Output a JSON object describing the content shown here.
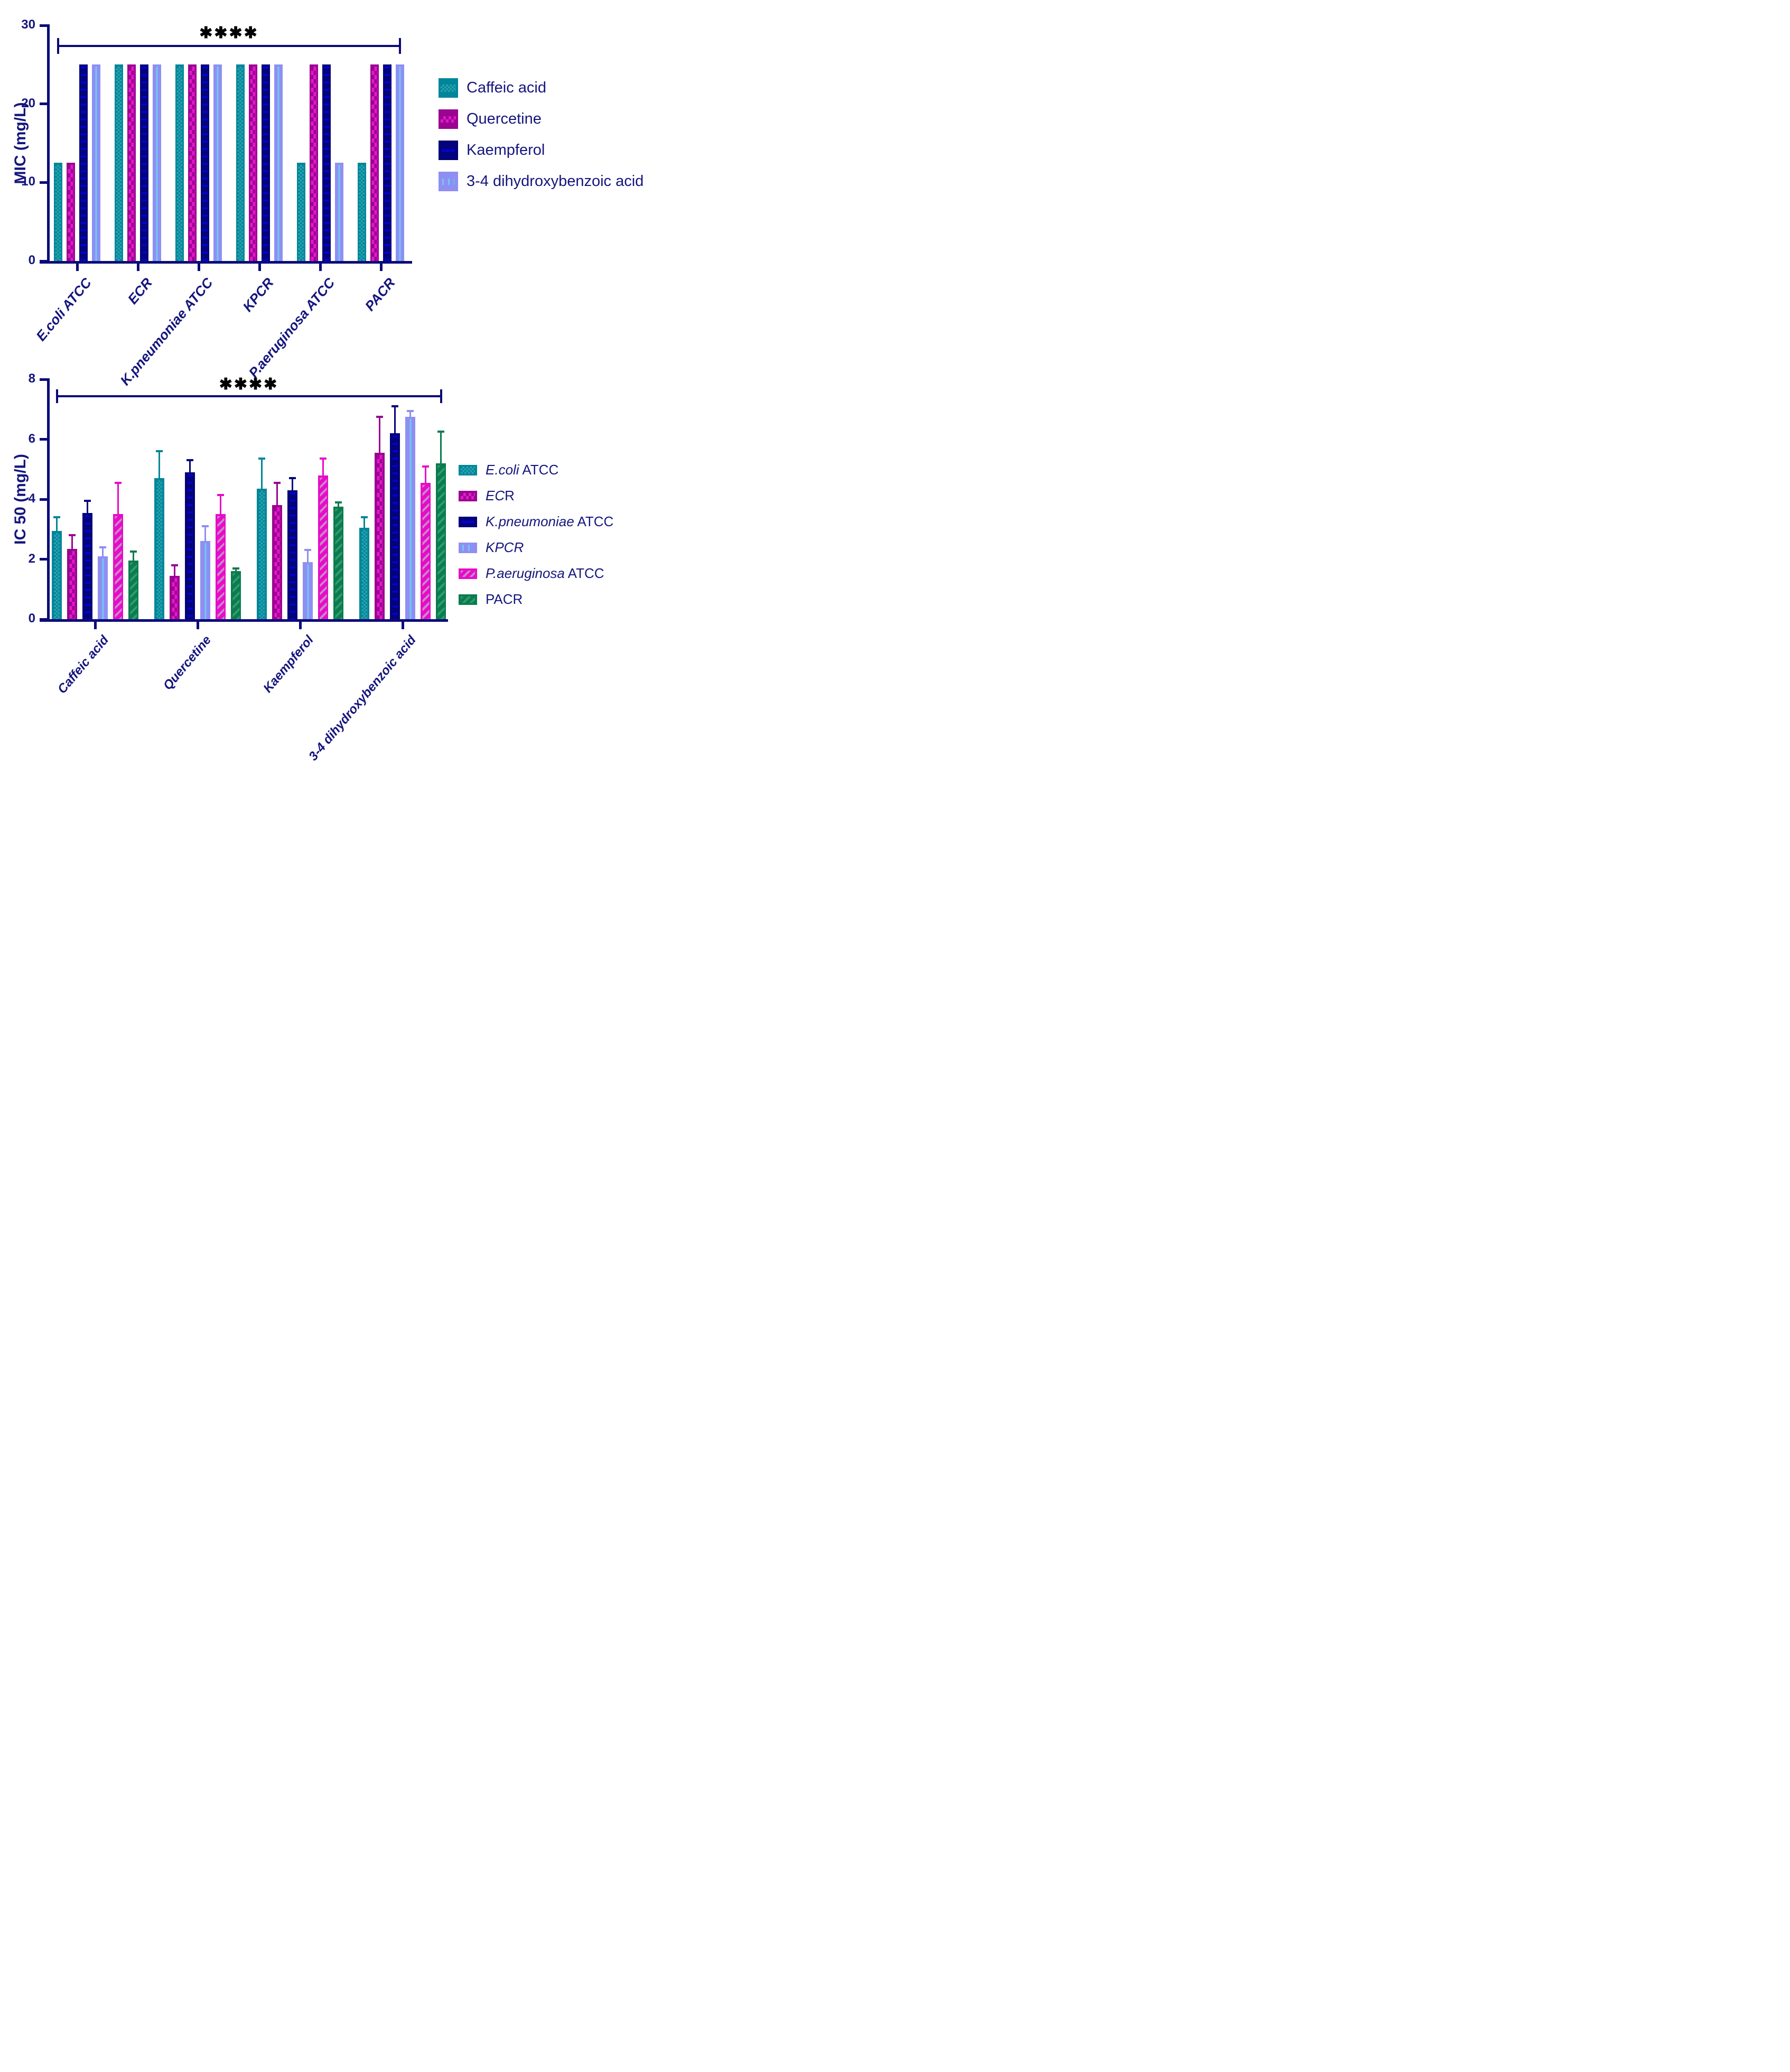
{
  "figure": {
    "background": "#ffffff",
    "axis_color": "#0a0a78",
    "label_color": "#15157e",
    "star_color": "#000000"
  },
  "palette": {
    "teal": {
      "base": "#018699",
      "pattern": "#2ba3b0"
    },
    "magenta": {
      "base": "#99058f",
      "pattern": "#e815ce"
    },
    "navy": {
      "base": "#040379",
      "pattern": "#0202ce"
    },
    "periwinkle": {
      "base": "#8f8ff2",
      "pattern": "#6ec9f2"
    },
    "pink": {
      "base": "#e60cc8",
      "pattern": "#c887c9"
    },
    "green": {
      "base": "#0c7b4f",
      "pattern": "#2f9e6d"
    }
  },
  "chart_data": [
    {
      "type": "bar",
      "title": "",
      "xlabel": "",
      "ylabel": "MIC (mg/L)",
      "ylim": [
        0,
        30
      ],
      "yticks": [
        0,
        10,
        20,
        30
      ],
      "grid": false,
      "legend_position": "right",
      "categories": [
        "E.coli ATCC",
        "ECR",
        "K.pneumoniae ATCC",
        "KPCR",
        "P.aeruginosa ATCC",
        "PACR"
      ],
      "series": [
        {
          "name": "Caffeic acid",
          "style": "teal",
          "values": [
            12.5,
            25,
            25,
            25,
            12.5,
            12.5
          ]
        },
        {
          "name": "Quercetine",
          "style": "magenta",
          "values": [
            12.5,
            25,
            25,
            25,
            25,
            25
          ]
        },
        {
          "name": "Kaempferol",
          "style": "navy",
          "values": [
            25,
            25,
            25,
            25,
            25,
            25
          ]
        },
        {
          "name": "3-4 dihydroxybenzoic acid",
          "style": "periwinkle",
          "values": [
            25,
            25,
            25,
            25,
            12.5,
            25
          ]
        }
      ],
      "significance": {
        "label": "✱✱✱✱",
        "y": 27.5
      }
    },
    {
      "type": "bar",
      "title": "",
      "xlabel": "",
      "ylabel": "IC 50 (mg/L)",
      "ylim": [
        0,
        8
      ],
      "yticks": [
        0,
        2,
        4,
        6,
        8
      ],
      "grid": false,
      "legend_position": "right",
      "categories": [
        "Caffeic acid",
        "Quercetine",
        "Kaempferol",
        "3-4 dihydroxybenzoic acid"
      ],
      "series": [
        {
          "name": "E.coli ATCC",
          "style": "teal",
          "values": [
            2.95,
            4.7,
            4.35,
            3.05
          ],
          "errors": [
            0.45,
            0.9,
            1.0,
            0.35
          ]
        },
        {
          "name": "ECR",
          "style": "magenta",
          "values": [
            2.35,
            1.45,
            3.8,
            5.55
          ],
          "errors": [
            0.45,
            0.35,
            0.75,
            1.2
          ]
        },
        {
          "name": "K.pneumoniae ATCC",
          "style": "navy",
          "values": [
            3.55,
            4.9,
            4.3,
            6.2
          ],
          "errors": [
            0.4,
            0.4,
            0.4,
            0.9
          ]
        },
        {
          "name": "KPCR",
          "style": "periwinkle",
          "values": [
            2.1,
            2.6,
            1.9,
            6.75
          ],
          "errors": [
            0.3,
            0.5,
            0.4,
            0.2
          ]
        },
        {
          "name": "P.aeruginosa ATCC",
          "style": "pink",
          "values": [
            3.5,
            3.5,
            4.8,
            4.55
          ],
          "errors": [
            1.05,
            0.65,
            0.55,
            0.55
          ]
        },
        {
          "name": "PACR",
          "style": "green",
          "values": [
            1.95,
            1.6,
            3.75,
            5.2
          ],
          "errors": [
            0.3,
            0.1,
            0.15,
            1.05
          ]
        }
      ],
      "significance": {
        "label": "✱✱✱✱",
        "y": 7.48
      }
    }
  ],
  "legends": [
    {
      "items": [
        {
          "style": "teal",
          "segments": [
            {
              "text": "Caffeic acid",
              "italic": false
            }
          ]
        },
        {
          "style": "magenta",
          "segments": [
            {
              "text": "Quercetine",
              "italic": false
            }
          ]
        },
        {
          "style": "navy",
          "segments": [
            {
              "text": "Kaempferol",
              "italic": false
            }
          ]
        },
        {
          "style": "periwinkle",
          "segments": [
            {
              "text": "3-4 dihydroxybenzoic acid",
              "italic": false
            }
          ]
        }
      ]
    },
    {
      "items": [
        {
          "style": "teal",
          "segments": [
            {
              "text": "E.coli",
              "italic": true
            },
            {
              "text": " ATCC",
              "italic": false
            }
          ]
        },
        {
          "style": "magenta",
          "segments": [
            {
              "text": "EC",
              "italic": true
            },
            {
              "text": "R",
              "italic": false
            }
          ]
        },
        {
          "style": "navy",
          "segments": [
            {
              "text": "K.pneumoniae",
              "italic": true
            },
            {
              "text": " ATCC",
              "italic": false
            }
          ]
        },
        {
          "style": "periwinkle",
          "segments": [
            {
              "text": "KPCR",
              "italic": true
            }
          ]
        },
        {
          "style": "pink",
          "segments": [
            {
              "text": "P.aeruginosa",
              "italic": true
            },
            {
              "text": " ATCC",
              "italic": false
            }
          ]
        },
        {
          "style": "green",
          "segments": [
            {
              "text": "PACR",
              "italic": false
            }
          ]
        }
      ]
    }
  ]
}
